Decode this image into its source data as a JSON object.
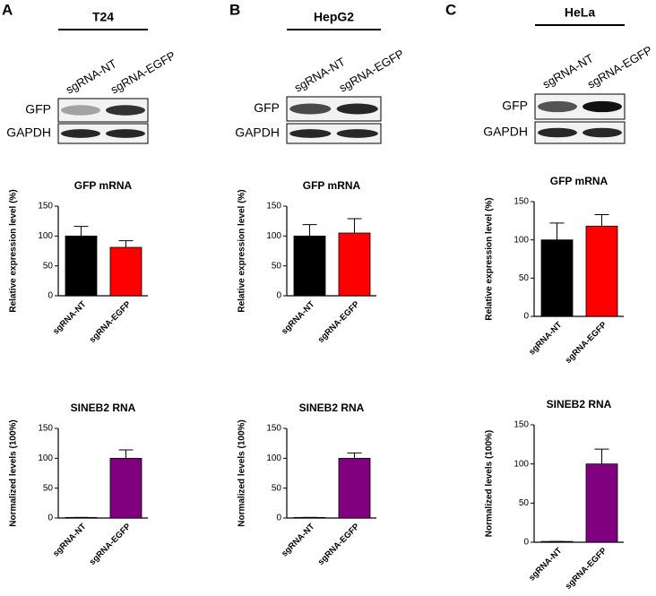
{
  "panels": [
    {
      "letter": "A",
      "cell_line": "T24",
      "lanes": [
        "sgRNA-NT",
        "sgRNA-EGFP"
      ],
      "blots": [
        "GFP",
        "GAPDH"
      ]
    },
    {
      "letter": "B",
      "cell_line": "HepG2",
      "lanes": [
        "sgRNA-NT",
        "sgRNA-EGFP"
      ],
      "blots": [
        "GFP",
        "GAPDH"
      ]
    },
    {
      "letter": "C",
      "cell_line": "HeLa",
      "lanes": [
        "sgRNA-NT",
        "sgRNA-EGFP"
      ],
      "blots": [
        "GFP",
        "GAPDH"
      ]
    }
  ],
  "chart_data": [
    {
      "type": "bar",
      "title": "GFP mRNA",
      "y_label": "Relative expression level (%)",
      "categories": [
        "sgRNA-NT",
        "sgRNA-EGFP"
      ],
      "values": [
        100,
        81
      ],
      "errors": [
        16,
        11
      ],
      "colors": [
        "#000000",
        "#ff0000"
      ],
      "ylim": [
        0,
        150
      ],
      "yticks": [
        0,
        50,
        100,
        150
      ]
    },
    {
      "type": "bar",
      "title": "SINEB2 RNA",
      "y_label": "Normalized levels (100%)",
      "categories": [
        "sgRNA-NT",
        "sgRNA-EGFP"
      ],
      "values": [
        1,
        100
      ],
      "errors": [
        0,
        14
      ],
      "colors": [
        "#800080",
        "#800080"
      ],
      "ylim": [
        0,
        150
      ],
      "yticks": [
        0,
        50,
        100,
        150
      ]
    },
    {
      "type": "bar",
      "title": "GFP mRNA",
      "y_label": "Relative expression level (%)",
      "categories": [
        "sgRNA-NT",
        "sgRNA-EGFP"
      ],
      "values": [
        100,
        105
      ],
      "errors": [
        19,
        24
      ],
      "colors": [
        "#000000",
        "#ff0000"
      ],
      "ylim": [
        0,
        150
      ],
      "yticks": [
        0,
        50,
        100,
        150
      ]
    },
    {
      "type": "bar",
      "title": "SINEB2 RNA",
      "y_label": "Normalized levels (100%)",
      "categories": [
        "sgRNA-NT",
        "sgRNA-EGFP"
      ],
      "values": [
        1,
        100
      ],
      "errors": [
        0,
        9
      ],
      "colors": [
        "#800080",
        "#800080"
      ],
      "ylim": [
        0,
        150
      ],
      "yticks": [
        0,
        50,
        100,
        150
      ]
    },
    {
      "type": "bar",
      "title": "GFP mRNA",
      "y_label": "Relative expression level (%)",
      "categories": [
        "sgRNA-NT",
        "sgRNA-EGFP"
      ],
      "values": [
        100,
        118
      ],
      "errors": [
        22,
        15
      ],
      "colors": [
        "#000000",
        "#ff0000"
      ],
      "ylim": [
        0,
        150
      ],
      "yticks": [
        0,
        50,
        100,
        150
      ]
    },
    {
      "type": "bar",
      "title": "SINEB2 RNA",
      "y_label": "Normalized levels (100%)",
      "categories": [
        "sgRNA-NT",
        "sgRNA-EGFP"
      ],
      "values": [
        1,
        100
      ],
      "errors": [
        0,
        19
      ],
      "colors": [
        "#800080",
        "#800080"
      ],
      "ylim": [
        0,
        150
      ],
      "yticks": [
        0,
        50,
        100,
        150
      ]
    }
  ]
}
